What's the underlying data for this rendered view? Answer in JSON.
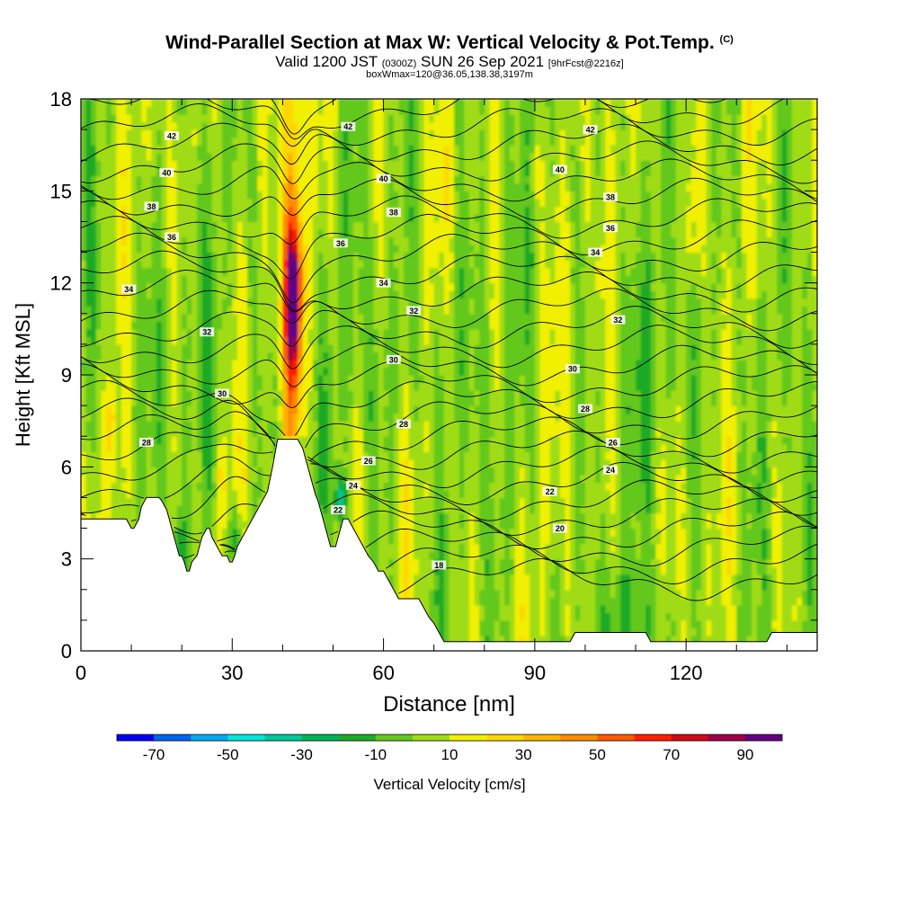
{
  "title": {
    "main": "Wind-Parallel Section at Max W: Vertical Velocity & Pot.Temp.",
    "mark": "(C)",
    "valid_prefix": "Valid 1200 JST",
    "valid_utc": "(0300Z)",
    "valid_date": "SUN 26 Sep 2021",
    "forecast": "[9hrFcst@2216z]",
    "box": "boxWmax=120@36.05,138.38,3197m"
  },
  "chart_data": {
    "type": "heatmap",
    "title": "Wind-Parallel Section at Max W: Vertical Velocity & Pot.Temp.",
    "xlabel": "Distance [nm]",
    "ylabel": "Height [Kft MSL]",
    "xlim": [
      0,
      146
    ],
    "ylim": [
      0,
      18
    ],
    "xticks": [
      0,
      30,
      60,
      90,
      120
    ],
    "yticks": [
      0,
      3,
      6,
      9,
      12,
      15,
      18
    ],
    "grid": false,
    "colorbar": {
      "label": "Vertical Velocity [cm/s]",
      "bounds": [
        -80,
        100
      ],
      "ticks": [
        -70,
        -50,
        -30,
        -10,
        10,
        30,
        50,
        70,
        90
      ],
      "colors": [
        "#0000f5",
        "#0064f0",
        "#00aaf0",
        "#00e6dc",
        "#00c89b",
        "#00b45a",
        "#1eaa28",
        "#64c81e",
        "#a0dc14",
        "#f0f000",
        "#ffd700",
        "#ffb400",
        "#ff8c00",
        "#ff5a00",
        "#ff1e00",
        "#d20a19",
        "#a0004b",
        "#640082"
      ]
    },
    "updraft_core": {
      "x": 42,
      "y_bottom": 7.5,
      "y_top": 14.5,
      "peak_wcms": 95,
      "peak_y": 11.4
    },
    "downdraft_region": {
      "x": 51.5,
      "y": 5.0,
      "min_wcms": -35
    },
    "terrain_kft": {
      "x": [
        0,
        8,
        9,
        10,
        10.5,
        11.5,
        12,
        13,
        13.5,
        15.5,
        16,
        17,
        17.5,
        18,
        18.5,
        19,
        19.5,
        20,
        20.5,
        21,
        21.5,
        22,
        23,
        23.5,
        24,
        25,
        25.5,
        26,
        27,
        28,
        29,
        29.5,
        30,
        30.5,
        31,
        32,
        33,
        34,
        35,
        36,
        37,
        38,
        39,
        40,
        41,
        42,
        43,
        44,
        44.5,
        45,
        45.5,
        46,
        46.5,
        47,
        47.5,
        48,
        48.5,
        49,
        49.5,
        50,
        50.5,
        51,
        51.5,
        52,
        53,
        54,
        55,
        56,
        57,
        58,
        59,
        60,
        61,
        62,
        63,
        64,
        65,
        66,
        67,
        68,
        69,
        70,
        71,
        72,
        73,
        74,
        75,
        76,
        77,
        78,
        79,
        80,
        81,
        82,
        83,
        84,
        85,
        86,
        87,
        88,
        89,
        90,
        91,
        92,
        93,
        94,
        95,
        96,
        97,
        98,
        99,
        100,
        101,
        102,
        103,
        104,
        105,
        106,
        107,
        108,
        109,
        110,
        111,
        112,
        113,
        114,
        115,
        116,
        117,
        118,
        119,
        120,
        121,
        122,
        123,
        124,
        125,
        126,
        127,
        128,
        129,
        130,
        131,
        132,
        133,
        134,
        135,
        136,
        137,
        138,
        139,
        140,
        141,
        142,
        143,
        144,
        145,
        146
      ],
      "y": [
        4.3,
        4.3,
        4.3,
        4.0,
        4.0,
        4.3,
        4.7,
        5.0,
        5.0,
        5.0,
        4.9,
        4.6,
        4.3,
        4.0,
        3.7,
        3.4,
        3.1,
        3.1,
        2.9,
        2.6,
        2.6,
        2.9,
        3.1,
        3.4,
        3.7,
        4.0,
        4.0,
        3.7,
        3.4,
        3.1,
        3.1,
        2.9,
        2.9,
        3.1,
        3.4,
        3.7,
        4.0,
        4.3,
        4.6,
        4.9,
        5.2,
        6.0,
        6.9,
        6.9,
        6.9,
        6.9,
        6.9,
        6.6,
        6.3,
        6.0,
        5.7,
        5.4,
        5.1,
        4.9,
        4.6,
        4.3,
        4.0,
        3.7,
        3.4,
        3.4,
        3.4,
        3.7,
        4.0,
        4.3,
        4.3,
        4.0,
        3.7,
        3.4,
        3.1,
        2.9,
        2.6,
        2.6,
        2.3,
        2.0,
        1.7,
        1.7,
        1.7,
        1.7,
        1.7,
        1.4,
        1.1,
        0.9,
        0.6,
        0.3,
        0.3,
        0.3,
        0.3,
        0.3,
        0.3,
        0.3,
        0.3,
        0.3,
        0.3,
        0.3,
        0.3,
        0.3,
        0.3,
        0.3,
        0.3,
        0.3,
        0.3,
        0.3,
        0.3,
        0.3,
        0.3,
        0.3,
        0.3,
        0.3,
        0.3,
        0.6,
        0.6,
        0.6,
        0.6,
        0.6,
        0.6,
        0.6,
        0.6,
        0.6,
        0.6,
        0.6,
        0.6,
        0.6,
        0.6,
        0.6,
        0.3,
        0.3,
        0.3,
        0.3,
        0.3,
        0.3,
        0.3,
        0.3,
        0.3,
        0.3,
        0.3,
        0.3,
        0.3,
        0.3,
        0.3,
        0.3,
        0.3,
        0.3,
        0.3,
        0.3,
        0.3,
        0.3,
        0.3,
        0.3,
        0.6,
        0.6,
        0.6,
        0.6,
        0.6,
        0.6,
        0.6,
        0.6,
        0.6,
        0.6,
        0.6
      ]
    },
    "isentropes": [
      {
        "theta": 18,
        "label_at": [
          71,
          2.8
        ]
      },
      {
        "theta": 20,
        "label_at": [
          95,
          4.0
        ]
      },
      {
        "theta": 22,
        "label_at": [
          51,
          4.6
        ],
        "label2_at": [
          93,
          5.2
        ]
      },
      {
        "theta": 24,
        "label_at": [
          54,
          5.4
        ],
        "label2_at": [
          105,
          5.9
        ]
      },
      {
        "theta": 26,
        "label_at": [
          57,
          6.2
        ],
        "label2_at": [
          105.5,
          6.8
        ]
      },
      {
        "theta": 28,
        "label_at": [
          64,
          7.4
        ],
        "label2_at": [
          100,
          7.9
        ],
        "label3_at": [
          13,
          6.8
        ]
      },
      {
        "theta": 30,
        "label_at": [
          28,
          8.4
        ],
        "label2_at": [
          62,
          9.5
        ],
        "label3_at": [
          97.5,
          9.2
        ]
      },
      {
        "theta": 32,
        "label_at": [
          25,
          10.4
        ],
        "label2_at": [
          66,
          11.1
        ],
        "label3_at": [
          106.5,
          10.8
        ]
      },
      {
        "theta": 34,
        "label_at": [
          9.5,
          11.8
        ],
        "label2_at": [
          60,
          12.0
        ],
        "label3_at": [
          102,
          13.0
        ]
      },
      {
        "theta": 36,
        "label_at": [
          18,
          13.5
        ],
        "label2_at": [
          51.5,
          13.3
        ],
        "label3_at": [
          105,
          13.8
        ]
      },
      {
        "theta": 38,
        "label_at": [
          14,
          14.5
        ],
        "label2_at": [
          62,
          14.3
        ],
        "label3_at": [
          105,
          14.8
        ]
      },
      {
        "theta": 40,
        "label_at": [
          17,
          15.6
        ],
        "label2_at": [
          60,
          15.4
        ],
        "label3_at": [
          95,
          15.7
        ]
      },
      {
        "theta": 42,
        "label_at": [
          18,
          16.8
        ],
        "label2_at": [
          53,
          17.1
        ],
        "label3_at": [
          101,
          17.0
        ]
      }
    ]
  }
}
